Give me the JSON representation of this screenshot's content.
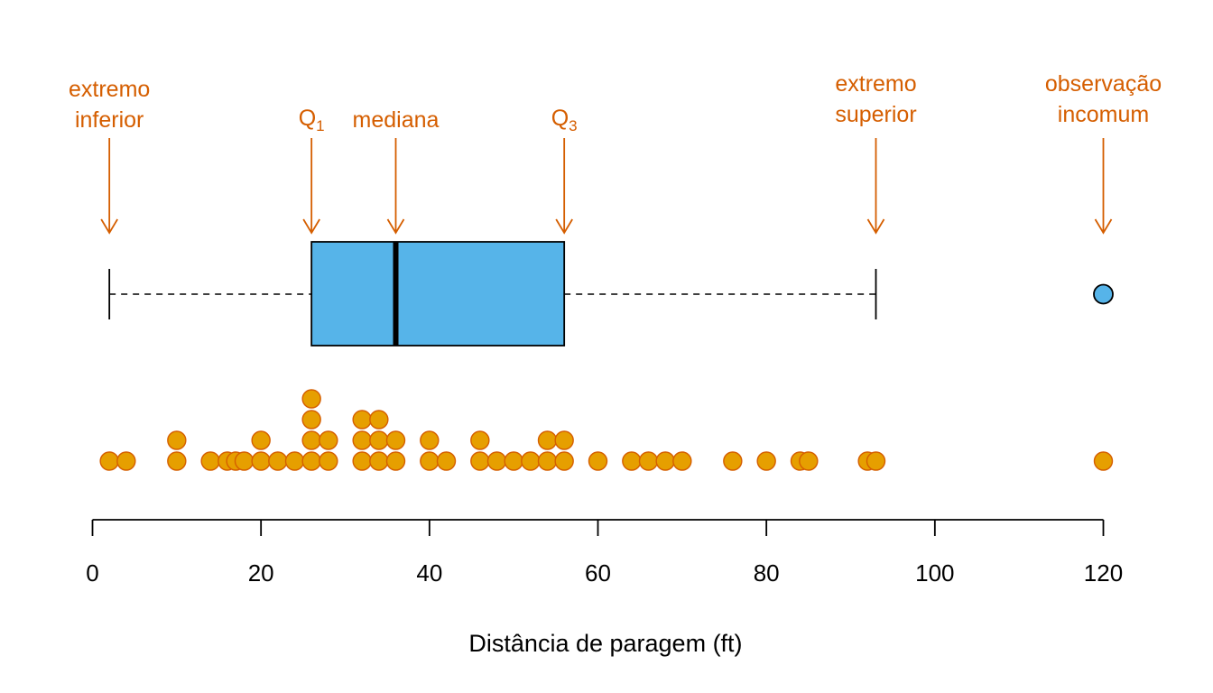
{
  "chart_data": {
    "type": "boxplot",
    "xlabel": "Distância de paragem (ft)",
    "xlim": [
      0,
      120
    ],
    "x_ticks": [
      0,
      20,
      40,
      60,
      80,
      100,
      120
    ],
    "box": {
      "lower_whisker": 2,
      "q1": 26,
      "median": 36,
      "q3": 56,
      "upper_whisker": 93,
      "outliers": [
        120
      ]
    },
    "points": [
      2,
      4,
      10,
      10,
      14,
      16,
      17,
      18,
      20,
      20,
      22,
      24,
      26,
      26,
      26,
      26,
      28,
      28,
      32,
      32,
      32,
      34,
      34,
      34,
      36,
      36,
      40,
      40,
      42,
      46,
      46,
      48,
      50,
      52,
      54,
      54,
      56,
      56,
      60,
      64,
      66,
      68,
      70,
      76,
      80,
      84,
      85,
      92,
      93,
      120
    ],
    "annotations": [
      {
        "key": "lower_whisker",
        "lines": [
          "extremo",
          "inferior"
        ]
      },
      {
        "key": "q1",
        "label": "Q",
        "sub": "1"
      },
      {
        "key": "median",
        "lines": [
          "mediana"
        ]
      },
      {
        "key": "q3",
        "label": "Q",
        "sub": "3"
      },
      {
        "key": "upper_whisker",
        "lines": [
          "extremo",
          "superior"
        ]
      },
      {
        "key": "outlier",
        "lines": [
          "observação",
          "incomum"
        ]
      }
    ],
    "colors": {
      "box_fill": "#56B4E9",
      "points_fill": "#E69F00",
      "points_stroke": "#D55E00",
      "annotation": "#D55E00",
      "line": "#000000"
    }
  }
}
